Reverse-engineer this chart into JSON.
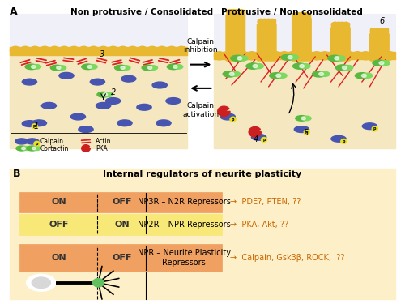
{
  "fig_width": 5.0,
  "fig_height": 3.75,
  "fig_dpi": 100,
  "bg_color": "#ffffff",
  "panel_a_label": "A",
  "panel_a_title_left": "Non protrusive / Consolidated",
  "panel_a_title_right": "Protrusive / Non consolidated",
  "panel_b_label": "B",
  "panel_b_title": "Internal regulators of neurite plasticity",
  "arrow_text_top": "Calpain\ninhibition",
  "arrow_text_bottom": "Calpain\nactivation",
  "membrane_color": "#e8b830",
  "membrane_bg": "#d4d8ec",
  "interior_color": "#f5e8c0",
  "box_edge": "#888888",
  "calpain_color": "#4855b0",
  "cortactin_color": "#5ab840",
  "cortactin_light": "#7dd860",
  "actin_color": "#dd2020",
  "pka_color": "#cc2020",
  "phospho_color": "#e8e020",
  "row1_color": "#f0a060",
  "row2_color": "#f8e878",
  "row3_color": "#f0a060",
  "row_label_color": "#333333",
  "arrow_text_color": "#cc6600",
  "neuron_body_color": "#ffffff",
  "neuron_inner_color": "#d8d8d8",
  "neuron_axon_color": "#111111",
  "gc_color": "#60c060",
  "row1_left_label": "ON",
  "row1_right_label": "OFF",
  "row1_text": "NP3R – N2R Repressors",
  "row1_arrow": "→  PDE?, PTEN, ??",
  "row2_left_label": "OFF",
  "row2_right_label": "ON",
  "row2_text": "NP2R – NPR Repressors",
  "row2_arrow": "→  PKA, Akt, ??",
  "row3_left_label": "ON",
  "row3_right_label": "OFF",
  "row3_text": "NPR – Neurite Plasticity\nRepressors",
  "row3_arrow": "→  Calpain, Gsk3β, ROCK,  ??",
  "legend_calpain": "Calpain",
  "legend_actin": "Actin",
  "legend_cortactin": "Cortactin",
  "legend_pka": "PKA",
  "panel_outer_bg": "#f0f0f8"
}
